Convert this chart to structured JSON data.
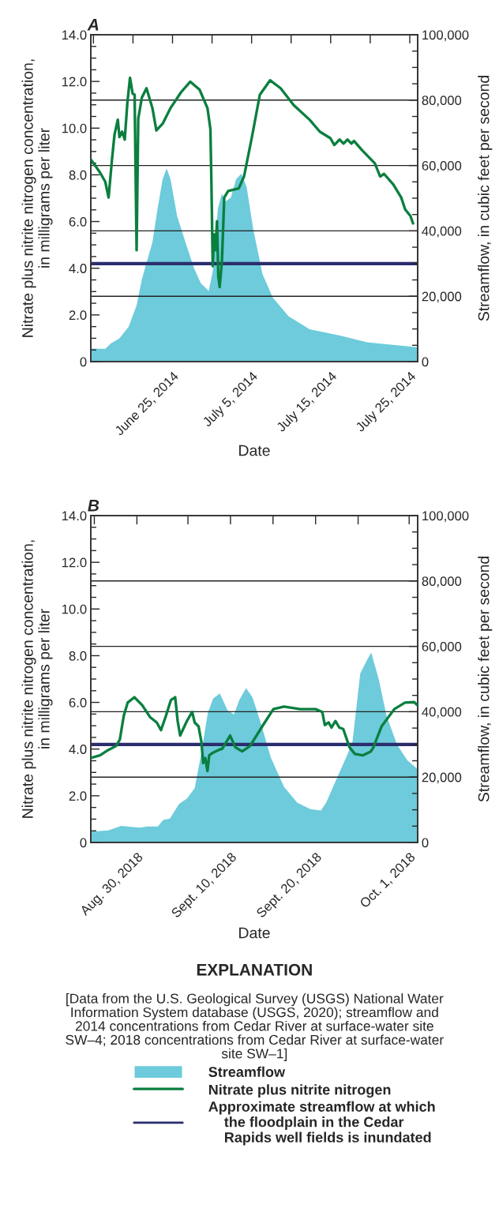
{
  "chart_data": [
    {
      "type": "area",
      "title": "A",
      "xlabel": "Date",
      "ylabel": "Nitrate plus nitrite nitrogen concentration,\nin milligrams per liter",
      "y2label": "Streamflow, in cubic feet per second",
      "xlim": [
        "2014-06-14T16:00",
        "2014-07-26T00:00"
      ],
      "xticks": [
        {
          "value": "2014-06-15",
          "label": null
        },
        {
          "value": "2014-06-20",
          "label": null
        },
        {
          "value": "2014-06-25",
          "label": "June 25, 2014"
        },
        {
          "value": "2014-06-30",
          "label": null
        },
        {
          "value": "2014-07-05",
          "label": "July 5, 2014"
        },
        {
          "value": "2014-07-10",
          "label": null
        },
        {
          "value": "2014-07-15",
          "label": "July 15, 2014"
        },
        {
          "value": "2014-07-20",
          "label": null
        },
        {
          "value": "2014-07-25",
          "label": "July 25, 2014"
        }
      ],
      "ylim": [
        0,
        14
      ],
      "yticks": [
        0,
        {
          "value": 0.5,
          "label": null
        },
        {
          "value": 1,
          "label": null
        },
        {
          "value": 1.5,
          "label": null
        },
        {
          "value": 2,
          "label": "2.0"
        },
        {
          "value": 2.5,
          "label": null
        },
        {
          "value": 3,
          "label": null
        },
        {
          "value": 3.5,
          "label": null
        },
        {
          "value": 4,
          "label": "4.0"
        },
        {
          "value": 4.5,
          "label": null
        },
        {
          "value": 5,
          "label": null
        },
        {
          "value": 5.5,
          "label": null
        },
        {
          "value": 6,
          "label": "6.0"
        },
        {
          "value": 6.5,
          "label": null
        },
        {
          "value": 7,
          "label": null
        },
        {
          "value": 7.5,
          "label": null
        },
        {
          "value": 8,
          "label": "8.0"
        },
        {
          "value": 8.5,
          "label": null
        },
        {
          "value": 9,
          "label": null
        },
        {
          "value": 9.5,
          "label": null
        },
        {
          "value": 10,
          "label": "10.0"
        },
        {
          "value": 10.5,
          "label": null
        },
        {
          "value": 11,
          "label": null
        },
        {
          "value": 11.5,
          "label": null
        },
        {
          "value": 12,
          "label": "12.0"
        },
        {
          "value": 12.5,
          "label": null
        },
        {
          "value": 13,
          "label": null
        },
        {
          "value": 13.5,
          "label": null
        },
        {
          "value": 14,
          "label": "14.0"
        }
      ],
      "y2lim": [
        0,
        100000
      ],
      "y2ticks": [
        0,
        {
          "value": 5000,
          "label": null
        },
        {
          "value": 10000,
          "label": null
        },
        {
          "value": 15000,
          "label": null
        },
        {
          "value": 20000,
          "label": "20,000"
        },
        {
          "value": 25000,
          "label": null
        },
        {
          "value": 30000,
          "label": null
        },
        {
          "value": 35000,
          "label": null
        },
        {
          "value": 40000,
          "label": "40,000"
        },
        {
          "value": 45000,
          "label": null
        },
        {
          "value": 50000,
          "label": null
        },
        {
          "value": 55000,
          "label": null
        },
        {
          "value": 60000,
          "label": "60,000"
        },
        {
          "value": 65000,
          "label": null
        },
        {
          "value": 70000,
          "label": null
        },
        {
          "value": 75000,
          "label": null
        },
        {
          "value": 80000,
          "label": "80,000"
        },
        {
          "value": 85000,
          "label": null
        },
        {
          "value": 90000,
          "label": null
        },
        {
          "value": 95000,
          "label": null
        },
        {
          "value": 100000,
          "label": "100,000"
        }
      ],
      "grid": "y2",
      "ref_lines": [
        {
          "axis": "y2",
          "value": 30000,
          "color": "#2b2d6e"
        }
      ],
      "series": [
        {
          "axis": "y2",
          "color": "#6dcbdb",
          "x": [
            "2014-06-14T16:00",
            "2014-06-16T12:00",
            "2014-06-17T04:00",
            "2014-06-18T07:00",
            "2014-06-19T11:00",
            "2014-06-20T11:00",
            "2014-06-21T03:00",
            "2014-06-21T19:00",
            "2014-06-22T11:00",
            "2014-06-23T03:00",
            "2014-06-23T18:00",
            "2014-06-24T06:00",
            "2014-06-24T18:00",
            "2014-06-25T14:00",
            "2014-06-26T18:00",
            "2014-06-27T18:00",
            "2014-06-28T14:00",
            "2014-06-29T14:00",
            "2014-06-30T02:00",
            "2014-06-30T18:00",
            "2014-07-01T06:00",
            "2014-07-01T17:00",
            "2014-07-02T09:00",
            "2014-07-03T01:00",
            "2014-07-03T17:00",
            "2014-07-04T09:00",
            "2014-07-05T05:00",
            "2014-07-06T09:00",
            "2014-07-07T16:00",
            "2014-07-09T16:00",
            "2014-07-12T08:00",
            "2014-07-16T07:00",
            "2014-07-19T14:00",
            "2014-07-26T00:00"
          ],
          "values": [
            4000,
            3900,
            5500,
            7100,
            10700,
            17200,
            25200,
            30900,
            36500,
            47000,
            55800,
            59100,
            55800,
            44500,
            35700,
            28400,
            24000,
            21600,
            27600,
            47000,
            51400,
            49000,
            50200,
            55800,
            57500,
            53400,
            40500,
            26800,
            19600,
            13900,
            9900,
            7900,
            5900,
            4400
          ]
        },
        {
          "type": "line",
          "color": "#0a7f3f",
          "x": [
            "2014-06-14T16:00",
            "2014-06-15T20:00",
            "2014-06-16T12:00",
            "2014-06-16T22:00",
            "2014-06-17T08:00",
            "2014-06-17T16:00",
            "2014-06-18T02:00",
            "2014-06-18T07:00",
            "2014-06-18T15:00",
            "2014-06-18T23:00",
            "2014-06-19T07:00",
            "2014-06-19T15:00",
            "2014-06-19T23:00",
            "2014-06-20T05:00",
            "2014-06-20T11:00",
            "2014-06-20T16:00",
            "2014-06-21T03:00",
            "2014-06-21T17:00",
            "2014-06-22T11:00",
            "2014-06-22T23:00",
            "2014-06-23T18:00",
            "2014-06-24T18:00",
            "2014-06-26T02:00",
            "2014-06-27T06:00",
            "2014-06-28T10:00",
            "2014-06-29T10:00",
            "2014-06-29T19:00",
            "2014-06-29T22:00",
            "2014-06-30T02:00",
            "2014-06-30T06:00",
            "2014-06-30T10:00",
            "2014-06-30T15:00",
            "2014-06-30T19:00",
            "2014-06-30T23:00",
            "2014-07-01T06:00",
            "2014-07-01T13:00",
            "2014-07-02T01:00",
            "2014-07-03T09:00",
            "2014-07-04T01:00",
            "2014-07-05T01:00",
            "2014-07-06T01:00",
            "2014-07-07T08:00",
            "2014-07-08T16:00",
            "2014-07-10T08:00",
            "2014-07-12T08:00",
            "2014-07-13T15:00",
            "2014-07-14T23:00",
            "2014-07-15T11:00",
            "2014-07-16T03:00",
            "2014-07-16T15:00",
            "2014-07-17T03:00",
            "2014-07-17T15:00",
            "2014-07-17T23:00",
            "2014-07-18T23:00",
            "2014-07-20T14:00",
            "2014-07-21T06:00",
            "2014-07-21T18:00",
            "2014-07-22T22:00",
            "2014-07-23T22:00",
            "2014-07-24T10:00",
            "2014-07-25T02:00",
            "2014-07-25T10:00"
          ],
          "values": [
            8.66,
            8.1,
            7.7,
            7.03,
            8.61,
            9.73,
            10.36,
            9.62,
            9.85,
            9.51,
            11.09,
            12.16,
            11.48,
            11.43,
            4.77,
            10.41,
            11.31,
            11.71,
            10.86,
            9.9,
            10.19,
            10.86,
            11.54,
            11.99,
            11.65,
            10.86,
            9.96,
            7.7,
            4.09,
            5.45,
            4.77,
            6.01,
            3.64,
            3.19,
            4.32,
            7.03,
            7.31,
            7.42,
            7.93,
            9.62,
            11.43,
            12.05,
            11.71,
            10.98,
            10.36,
            9.85,
            9.57,
            9.28,
            9.51,
            9.34,
            9.51,
            9.34,
            9.45,
            9.06,
            8.49,
            7.93,
            8.04,
            7.59,
            7.03,
            6.52,
            6.24,
            5.92
          ]
        }
      ]
    },
    {
      "type": "area",
      "title": "B",
      "xlabel": "Date",
      "ylabel": "Nitrate plus nitrite nitrogen concentration,\nin milligrams per liter",
      "y2label": "Streamflow, in cubic feet per second",
      "xlim": [
        "2018-08-24T14:00",
        "2018-10-02T00:00"
      ],
      "xticks": [
        {
          "value": "2018-08-25",
          "label": null
        },
        {
          "value": "2018-08-30",
          "label": "Aug. 30, 2018"
        },
        {
          "value": "2018-09-05",
          "label": null
        },
        {
          "value": "2018-09-10",
          "label": "Sept. 10, 2018"
        },
        {
          "value": "2018-09-15",
          "label": null
        },
        {
          "value": "2018-09-20",
          "label": "Sept. 20, 2018"
        },
        {
          "value": "2018-09-25",
          "label": null
        },
        {
          "value": "2018-10-01",
          "label": "Oct. 1, 2018"
        }
      ],
      "ylim": [
        0,
        14
      ],
      "yticks": [
        0,
        {
          "value": 0.5,
          "label": null
        },
        {
          "value": 1,
          "label": null
        },
        {
          "value": 1.5,
          "label": null
        },
        {
          "value": 2,
          "label": "2.0"
        },
        {
          "value": 2.5,
          "label": null
        },
        {
          "value": 3,
          "label": null
        },
        {
          "value": 3.5,
          "label": null
        },
        {
          "value": 4,
          "label": "4.0"
        },
        {
          "value": 4.5,
          "label": null
        },
        {
          "value": 5,
          "label": null
        },
        {
          "value": 5.5,
          "label": null
        },
        {
          "value": 6,
          "label": "6.0"
        },
        {
          "value": 6.5,
          "label": null
        },
        {
          "value": 7,
          "label": null
        },
        {
          "value": 7.5,
          "label": null
        },
        {
          "value": 8,
          "label": "8.0"
        },
        {
          "value": 8.5,
          "label": null
        },
        {
          "value": 9,
          "label": null
        },
        {
          "value": 9.5,
          "label": null
        },
        {
          "value": 10,
          "label": "10.0"
        },
        {
          "value": 10.5,
          "label": null
        },
        {
          "value": 11,
          "label": null
        },
        {
          "value": 11.5,
          "label": null
        },
        {
          "value": 12,
          "label": "12.0"
        },
        {
          "value": 12.5,
          "label": null
        },
        {
          "value": 13,
          "label": null
        },
        {
          "value": 13.5,
          "label": null
        },
        {
          "value": 14,
          "label": "14.0"
        }
      ],
      "y2lim": [
        0,
        100000
      ],
      "y2ticks": [
        0,
        {
          "value": 5000,
          "label": null
        },
        {
          "value": 10000,
          "label": null
        },
        {
          "value": 15000,
          "label": null
        },
        {
          "value": 20000,
          "label": "20,000"
        },
        {
          "value": 25000,
          "label": null
        },
        {
          "value": 30000,
          "label": null
        },
        {
          "value": 35000,
          "label": null
        },
        {
          "value": 40000,
          "label": "40,000"
        },
        {
          "value": 45000,
          "label": null
        },
        {
          "value": 50000,
          "label": null
        },
        {
          "value": 55000,
          "label": null
        },
        {
          "value": 60000,
          "label": "60,000"
        },
        {
          "value": 65000,
          "label": null
        },
        {
          "value": 70000,
          "label": null
        },
        {
          "value": 75000,
          "label": null
        },
        {
          "value": 80000,
          "label": "80,000"
        },
        {
          "value": 85000,
          "label": null
        },
        {
          "value": 90000,
          "label": null
        },
        {
          "value": 95000,
          "label": null
        },
        {
          "value": 100000,
          "label": "100,000"
        }
      ],
      "grid": "y2",
      "legend": "bottom",
      "annotations": [
        "EXPLANATION",
        "[Data from the U.S. Geological Survey (USGS) National Water\nInformation System database (USGS, 2020); streamflow and\n2014 concentrations from Cedar River at surface-water site\nSW–4; 2018 concentrations from Cedar River at surface-water\nsite SW–1]"
      ],
      "ref_lines": [
        {
          "axis": "y2",
          "value": 30000,
          "color": "#2b2d6e",
          "label": "Approximate streamflow at which\n    the floodplain in the Cedar\n    Rapids well fields is inundated"
        }
      ],
      "series": [
        {
          "axis": "y2",
          "name": "Streamflow",
          "color": "#6dcbdb",
          "x": [
            "2018-08-24T14:00",
            "2018-08-26T15:00",
            "2018-08-28T04:00",
            "2018-08-30T07:00",
            "2018-08-31T06:00",
            "2018-09-01T11:00",
            "2018-09-02T02:00",
            "2018-09-02T21:00",
            "2018-09-03T23:00",
            "2018-09-04T21:00",
            "2018-09-05T19:00",
            "2018-09-06T14:00",
            "2018-09-07T08:00",
            "2018-09-07T23:00",
            "2018-09-08T18:00",
            "2018-09-09T16:00",
            "2018-09-10T10:00",
            "2018-09-11T01:00",
            "2018-09-11T20:00",
            "2018-09-12T14:00",
            "2018-09-13T12:00",
            "2018-09-14T18:00",
            "2018-09-16T07:00",
            "2018-09-17T20:00",
            "2018-09-19T09:00",
            "2018-09-20T15:00",
            "2018-09-21T06:00",
            "2018-09-22T11:00",
            "2018-09-23T17:00",
            "2018-09-24T08:00",
            "2018-09-25T06:00",
            "2018-09-26T01:00",
            "2018-09-26T13:00",
            "2018-09-27T10:00",
            "2018-09-28T08:00",
            "2018-09-29T14:00",
            "2018-09-30T19:00",
            "2018-10-02T00:00"
          ],
          "values": [
            3300,
            3700,
            5100,
            4500,
            4900,
            4900,
            6900,
            7300,
            11800,
            13400,
            16600,
            27500,
            39600,
            44000,
            45600,
            40400,
            39200,
            43600,
            47200,
            44400,
            37100,
            25900,
            17000,
            12200,
            10200,
            9800,
            12200,
            19400,
            26700,
            30700,
            51700,
            55800,
            58100,
            50000,
            38800,
            29900,
            25100,
            22400
          ]
        },
        {
          "type": "line",
          "name": "Nitrate plus nitrite nitrogen",
          "color": "#0a7f3f",
          "x": [
            "2018-08-24T14:00",
            "2018-08-25T16:00",
            "2018-08-26T15:00",
            "2018-08-27T13:00",
            "2018-08-28T00:00",
            "2018-08-28T11:00",
            "2018-08-28T22:00",
            "2018-08-29T17:00",
            "2018-08-30T15:00",
            "2018-08-31T13:00",
            "2018-09-01T08:00",
            "2018-09-01T20:00",
            "2018-09-02T10:00",
            "2018-09-03T00:00",
            "2018-09-03T12:00",
            "2018-09-03T19:00",
            "2018-09-04T02:00",
            "2018-09-04T21:00",
            "2018-09-05T12:00",
            "2018-09-05T19:00",
            "2018-09-06T06:00",
            "2018-09-06T14:00",
            "2018-09-06T19:00",
            "2018-09-07T01:00",
            "2018-09-07T07:00",
            "2018-09-07T12:00",
            "2018-09-07T23:00",
            "2018-09-08T14:00",
            "2018-09-09T01:00",
            "2018-09-09T12:00",
            "2018-09-09T23:00",
            "2018-09-10T14:00",
            "2018-09-11T09:00",
            "2018-09-12T07:00",
            "2018-09-13T20:00",
            "2018-09-15T01:00",
            "2018-09-16T07:00",
            "2018-09-18T04:00",
            "2018-09-20T00:00",
            "2018-09-20T19:00",
            "2018-09-21T02:00",
            "2018-09-21T13:00",
            "2018-09-21T21:00",
            "2018-09-22T08:00",
            "2018-09-22T19:00",
            "2018-09-23T06:00",
            "2018-09-24T00:00",
            "2018-09-24T15:00",
            "2018-09-25T13:00",
            "2018-09-26T12:00",
            "2018-09-26T19:00",
            "2018-09-27T18:00",
            "2018-09-29T06:00",
            "2018-09-30T12:00",
            "2018-10-01T14:00",
            "2018-10-01T23:00"
          ],
          "values": [
            3.62,
            3.73,
            3.96,
            4.13,
            4.41,
            5.43,
            5.99,
            6.22,
            5.88,
            5.37,
            5.14,
            4.81,
            5.43,
            6.1,
            6.22,
            5.2,
            4.58,
            5.2,
            5.59,
            5.14,
            4.97,
            4.3,
            3.4,
            3.62,
            3.06,
            3.73,
            3.85,
            3.96,
            4.02,
            4.3,
            4.58,
            4.07,
            3.9,
            4.13,
            5.03,
            5.71,
            5.82,
            5.71,
            5.71,
            5.59,
            5.03,
            5.14,
            4.92,
            5.2,
            4.92,
            4.86,
            4.07,
            3.79,
            3.73,
            3.9,
            4.07,
            4.97,
            5.71,
            5.99,
            6.01,
            5.88
          ]
        }
      ]
    }
  ]
}
